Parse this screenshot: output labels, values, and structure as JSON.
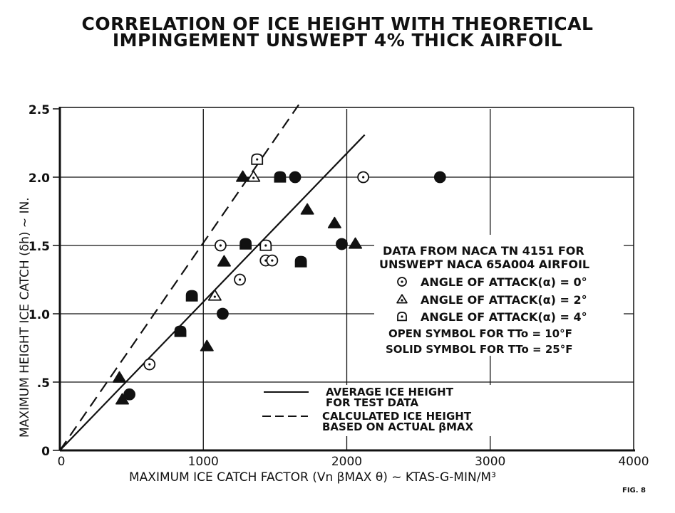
{
  "page": {
    "title_line1": "CORRELATION OF ICE HEIGHT WITH THEORETICAL",
    "title_line2": "IMPINGEMENT UNSWEPT 4% THICK AIRFOIL",
    "figure_label": "FIG. 8"
  },
  "chart_data": {
    "type": "scatter",
    "title": "CORRELATION OF ICE HEIGHT WITH THEORETICAL IMPINGEMENT UNSWEPT 4% THICK AIRFOIL",
    "xlabel": "MAXIMUM ICE CATCH FACTOR (Vn βMAX θ) ~ KTAS-G-MIN/M³",
    "ylabel": "MAXIMUM HEIGHT ICE CATCH (δh) ~ IN.",
    "xlim": [
      0,
      4000
    ],
    "ylim": [
      0,
      2.5
    ],
    "xticks": [
      "0",
      "1000",
      "2000",
      "3000",
      "4000"
    ],
    "yticks": [
      "0",
      ".5",
      "1.0",
      "1.5",
      "2.0",
      "2.5"
    ],
    "grid": true,
    "legend_position": "right-center",
    "legend_title": [
      "DATA FROM NACA TN 4151 FOR",
      "UNSWEPT NACA 65A004 AIRFOIL"
    ],
    "legend_entries": [
      {
        "symbol": "circle-dot",
        "label": "ANGLE OF ATTACK(α) = 0°"
      },
      {
        "symbol": "triangle-dot",
        "label": "ANGLE OF ATTACK(α) = 2°"
      },
      {
        "symbol": "square-dot",
        "label": "ANGLE OF ATTACK(α) = 4°"
      }
    ],
    "legend_notes": [
      "OPEN SYMBOL FOR TTo = 10°F",
      "SOLID SYMBOL FOR TTo = 25°F"
    ],
    "line_legend": [
      {
        "style": "solid",
        "label": [
          "AVERAGE ICE HEIGHT",
          "FOR TEST DATA"
        ]
      },
      {
        "style": "dashed",
        "label": [
          "CALCULATED ICE HEIGHT",
          "BASED ON ACTUAL βMAX"
        ]
      }
    ],
    "lines": [
      {
        "name": "Average ice height for test data",
        "style": "solid",
        "x": [
          0,
          2125
        ],
        "y": [
          0,
          2.31
        ]
      },
      {
        "name": "Calculated ice height based on actual βmax",
        "style": "dashed",
        "x": [
          0,
          1665
        ],
        "y": [
          0,
          2.53
        ]
      }
    ],
    "series": [
      {
        "name": "α = 0°, open (TTo = 10°F)",
        "symbol": "circle",
        "filled": false,
        "points": [
          [
            1120,
            1.5
          ],
          [
            1435,
            1.39
          ],
          [
            1480,
            1.39
          ],
          [
            1255,
            1.25
          ],
          [
            625,
            0.63
          ],
          [
            2115,
            2.0
          ]
        ]
      },
      {
        "name": "α = 0°, solid (TTo = 25°F)",
        "symbol": "circle",
        "filled": true,
        "points": [
          [
            1640,
            2.0
          ],
          [
            2650,
            2.0
          ],
          [
            1965,
            1.51
          ],
          [
            1135,
            1.0
          ],
          [
            485,
            0.41
          ]
        ]
      },
      {
        "name": "α = 2°, open (TTo = 10°F)",
        "symbol": "triangle",
        "filled": false,
        "points": [
          [
            1350,
            2.0
          ],
          [
            1080,
            1.13
          ]
        ]
      },
      {
        "name": "α = 2°, solid (TTo = 25°F)",
        "symbol": "triangle",
        "filled": true,
        "points": [
          [
            1275,
            2.0
          ],
          [
            1725,
            1.76
          ],
          [
            1915,
            1.66
          ],
          [
            2060,
            1.51
          ],
          [
            1145,
            1.38
          ],
          [
            1025,
            0.76
          ],
          [
            415,
            0.53
          ],
          [
            435,
            0.37
          ]
        ]
      },
      {
        "name": "α = 4°, open (TTo = 10°F)",
        "symbol": "square",
        "filled": false,
        "points": [
          [
            1375,
            2.13
          ],
          [
            1435,
            1.5
          ]
        ]
      },
      {
        "name": "α = 4°, solid (TTo = 25°F)",
        "symbol": "square",
        "filled": true,
        "points": [
          [
            1535,
            2.0
          ],
          [
            1295,
            1.51
          ],
          [
            1680,
            1.38
          ],
          [
            920,
            1.13
          ],
          [
            840,
            0.87
          ]
        ]
      }
    ]
  }
}
